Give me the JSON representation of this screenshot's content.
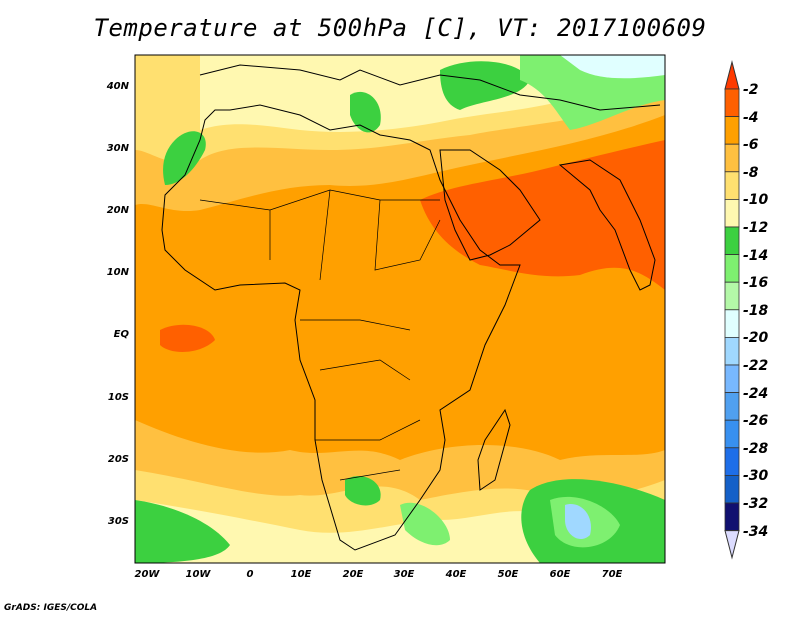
{
  "title": "Temperature at 500hPa [C], VT: 2017100609",
  "credit": "GrADS: IGES/COLA",
  "map": {
    "lon_labels": [
      "20W",
      "10W",
      "0",
      "10E",
      "20E",
      "30E",
      "40E",
      "50E",
      "60E",
      "70E"
    ],
    "lat_labels": [
      "40N",
      "30N",
      "20N",
      "10N",
      "EQ",
      "10S",
      "20S",
      "30S"
    ]
  },
  "colorbar": {
    "labels": [
      "-2",
      "-4",
      "-6",
      "-8",
      "-10",
      "-12",
      "-14",
      "-16",
      "-18",
      "-20",
      "-22",
      "-24",
      "-26",
      "-28",
      "-30",
      "-32",
      "-34"
    ],
    "colors": [
      "#ff3a00",
      "#ff6000",
      "#ffa000",
      "#ffc040",
      "#ffe070",
      "#fff8b0",
      "#3cd040",
      "#7ef070",
      "#b4f8a8",
      "#e0ffff",
      "#a0d8ff",
      "#78b8ff",
      "#50a0f0",
      "#3890f0",
      "#1e6ee8",
      "#1460c8",
      "#101070",
      "#dcdcff"
    ]
  }
}
